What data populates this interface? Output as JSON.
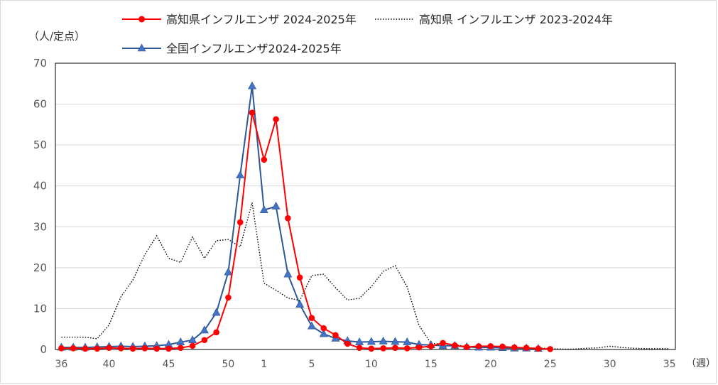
{
  "chart_data": {
    "type": "line",
    "title": "",
    "ylabel": "（人/定点）",
    "xlabel": "（週）",
    "ylim": [
      0,
      70
    ],
    "yticks": [
      0,
      10,
      20,
      30,
      40,
      50,
      60,
      70
    ],
    "grid": true,
    "legend_position": "top",
    "weeks": [
      36,
      37,
      38,
      39,
      40,
      41,
      42,
      43,
      44,
      45,
      46,
      47,
      48,
      49,
      50,
      51,
      52,
      1,
      2,
      3,
      4,
      5,
      6,
      7,
      8,
      9,
      10,
      11,
      12,
      13,
      14,
      15,
      16,
      17,
      18,
      19,
      20,
      21,
      22,
      23,
      24,
      25,
      26,
      27,
      28,
      29,
      30,
      31,
      32,
      33,
      34,
      35
    ],
    "xtick_labels": [
      "36",
      "40",
      "45",
      "50",
      "1",
      "5",
      "10",
      "15",
      "20",
      "25",
      "30",
      "35"
    ],
    "xtick_positions": [
      0,
      4,
      9,
      14,
      17,
      21,
      26,
      31,
      36,
      41,
      46,
      51
    ],
    "series": [
      {
        "name": "高知県インフルエンザ 2024-2025年",
        "color": "#ff0000",
        "style": "solid-circle",
        "values": [
          0.3,
          0.3,
          0.2,
          0.2,
          0.4,
          0.3,
          0.2,
          0.3,
          0.2,
          0.2,
          0.4,
          0.9,
          2.3,
          4.2,
          12.7,
          31.1,
          57.9,
          46.4,
          56.3,
          32.1,
          17.6,
          7.7,
          5.2,
          3.5,
          1.4,
          0.4,
          0.2,
          0.3,
          0.4,
          0.3,
          0.5,
          0.8,
          1.6,
          1.0,
          0.6,
          0.8,
          0.8,
          0.7,
          0.5,
          0.4,
          0.2,
          0.1
        ]
      },
      {
        "name": "高知県 インフルエンザ 2023-2024年",
        "color": "#000000",
        "style": "dotted",
        "values": [
          3.0,
          3.0,
          3.0,
          2.6,
          6.0,
          12.9,
          17.0,
          23.2,
          27.8,
          22.3,
          21.3,
          27.5,
          22.3,
          26.6,
          26.9,
          25.1,
          35.9,
          16.2,
          14.5,
          12.6,
          12.0,
          18.1,
          18.4,
          15.1,
          12.1,
          12.5,
          15.4,
          19.1,
          20.5,
          15.3,
          5.9,
          1.5,
          1.3,
          1.2,
          0.7,
          0.5,
          0.6,
          0.5,
          0.4,
          0.3,
          0.4,
          0.2,
          0.1,
          0.1,
          0.3,
          0.4,
          0.8,
          0.5,
          0.3,
          0.2,
          0.2,
          0.2
        ]
      },
      {
        "name": "全国インフルエンザ2024-2025年",
        "color": "#2e5796",
        "style": "solid-triangle",
        "values": [
          0.5,
          0.5,
          0.5,
          0.6,
          0.7,
          0.8,
          0.7,
          0.8,
          0.9,
          1.2,
          1.8,
          2.3,
          4.7,
          9.0,
          18.9,
          42.6,
          64.4,
          34.1,
          35.0,
          18.4,
          11.0,
          5.7,
          3.8,
          2.7,
          2.1,
          1.8,
          1.9,
          2.0,
          1.9,
          1.8,
          1.2,
          1.1,
          0.9,
          0.9,
          0.6,
          0.5,
          0.5,
          0.4,
          0.3,
          0.3,
          0.2
        ]
      }
    ]
  }
}
